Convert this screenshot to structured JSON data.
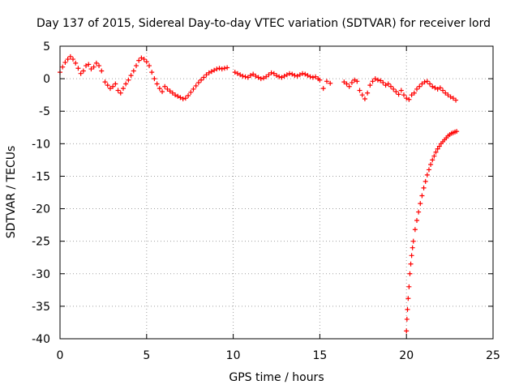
{
  "chart_data": {
    "type": "scatter",
    "title": "Day 137 of 2015, Sidereal Day-to-day VTEC variation (SDTVAR) for receiver lord",
    "xlabel": "GPS time / hours",
    "ylabel": "SDTVAR / TECUs",
    "xlim": [
      0,
      25
    ],
    "ylim": [
      -40,
      5
    ],
    "xticks": [
      0,
      5,
      10,
      15,
      20,
      25
    ],
    "yticks": [
      5,
      0,
      -5,
      -10,
      -15,
      -20,
      -25,
      -30,
      -35,
      -40
    ],
    "grid": true,
    "marker": "+",
    "series_color": "#ff0000",
    "series": [
      {
        "name": "SDTVAR",
        "x": [
          0.0,
          0.15,
          0.3,
          0.45,
          0.6,
          0.75,
          0.9,
          1.05,
          1.2,
          1.35,
          1.5,
          1.65,
          1.8,
          1.95,
          2.1,
          2.25,
          2.4,
          2.6,
          2.75,
          2.9,
          3.05,
          3.2,
          3.35,
          3.5,
          3.65,
          3.8,
          3.95,
          4.1,
          4.25,
          4.4,
          4.55,
          4.7,
          4.85,
          5.0,
          5.15,
          5.3,
          5.45,
          5.6,
          5.75,
          5.9,
          6.05,
          6.2,
          6.35,
          6.5,
          6.65,
          6.8,
          6.95,
          7.1,
          7.25,
          7.4,
          7.55,
          7.7,
          7.85,
          8.0,
          8.15,
          8.3,
          8.45,
          8.6,
          8.75,
          8.9,
          9.05,
          9.2,
          9.35,
          9.5,
          9.65,
          10.1,
          10.25,
          10.4,
          10.55,
          10.7,
          10.85,
          11.0,
          11.15,
          11.3,
          11.45,
          11.6,
          11.75,
          11.9,
          12.05,
          12.2,
          12.35,
          12.5,
          12.65,
          12.8,
          12.95,
          13.1,
          13.25,
          13.4,
          13.55,
          13.7,
          13.85,
          14.0,
          14.15,
          14.3,
          14.45,
          14.6,
          14.75,
          14.9,
          15.0,
          15.2,
          15.4,
          15.6,
          16.4,
          16.55,
          16.7,
          16.85,
          17.0,
          17.15,
          17.3,
          17.45,
          17.6,
          17.75,
          17.9,
          18.05,
          18.2,
          18.35,
          18.5,
          18.65,
          18.8,
          18.95,
          19.1,
          19.25,
          19.4,
          19.55,
          19.7,
          19.85,
          20.0,
          20.15,
          20.3,
          20.45,
          20.6,
          20.75,
          20.9,
          21.05,
          21.2,
          21.35,
          21.5,
          21.65,
          21.8,
          21.95,
          22.1,
          22.25,
          22.4,
          22.55,
          22.7,
          22.85,
          20.0,
          20.03,
          20.06,
          20.1,
          20.15,
          20.2,
          20.25,
          20.3,
          20.35,
          20.4,
          20.5,
          20.6,
          20.7,
          20.8,
          20.9,
          21.0,
          21.1,
          21.2,
          21.3,
          21.4,
          21.5,
          21.6,
          21.7,
          21.8,
          21.9,
          22.0,
          22.1,
          22.2,
          22.3,
          22.4,
          22.5,
          22.6,
          22.7,
          22.8,
          22.9
        ],
        "y": [
          1.0,
          1.8,
          2.5,
          3.0,
          3.4,
          3.0,
          2.4,
          1.6,
          0.8,
          1.2,
          2.0,
          2.2,
          1.5,
          1.8,
          2.4,
          2.0,
          1.2,
          -0.5,
          -1.0,
          -1.5,
          -1.2,
          -0.8,
          -1.8,
          -2.2,
          -1.5,
          -0.8,
          -0.2,
          0.5,
          1.2,
          2.0,
          2.8,
          3.2,
          3.0,
          2.6,
          2.0,
          1.0,
          0.0,
          -0.8,
          -1.5,
          -2.0,
          -1.2,
          -1.6,
          -1.9,
          -2.2,
          -2.5,
          -2.7,
          -2.9,
          -3.1,
          -3.0,
          -2.6,
          -2.1,
          -1.6,
          -1.1,
          -0.6,
          -0.2,
          0.2,
          0.6,
          0.9,
          1.1,
          1.3,
          1.5,
          1.6,
          1.5,
          1.6,
          1.7,
          1.0,
          0.8,
          0.6,
          0.4,
          0.3,
          0.2,
          0.5,
          0.7,
          0.4,
          0.2,
          0.0,
          0.1,
          0.3,
          0.6,
          0.9,
          0.8,
          0.5,
          0.3,
          0.2,
          0.4,
          0.6,
          0.8,
          0.7,
          0.5,
          0.4,
          0.6,
          0.8,
          0.7,
          0.5,
          0.3,
          0.2,
          0.3,
          0.0,
          -0.2,
          -1.5,
          -0.4,
          -0.7,
          -0.5,
          -0.8,
          -1.2,
          -0.6,
          -0.2,
          -0.4,
          -1.8,
          -2.5,
          -3.1,
          -2.2,
          -1.0,
          -0.4,
          0.0,
          -0.2,
          -0.3,
          -0.6,
          -1.0,
          -0.8,
          -1.2,
          -1.6,
          -2.0,
          -2.4,
          -1.8,
          -2.5,
          -3.0,
          -3.2,
          -2.5,
          -2.2,
          -1.6,
          -1.2,
          -0.8,
          -0.5,
          -0.4,
          -0.8,
          -1.2,
          -1.4,
          -1.6,
          -1.4,
          -1.8,
          -2.2,
          -2.5,
          -2.8,
          -3.0,
          -3.3,
          -38.8,
          -37.0,
          -35.5,
          -33.8,
          -32.0,
          -30.0,
          -28.5,
          -27.2,
          -26.0,
          -25.0,
          -23.2,
          -21.8,
          -20.5,
          -19.2,
          -18.0,
          -16.8,
          -15.8,
          -14.8,
          -14.0,
          -13.2,
          -12.5,
          -11.9,
          -11.3,
          -10.8,
          -10.4,
          -10.0,
          -9.7,
          -9.4,
          -9.1,
          -8.8,
          -8.6,
          -8.4,
          -8.3,
          -8.2,
          -8.1
        ]
      }
    ]
  }
}
